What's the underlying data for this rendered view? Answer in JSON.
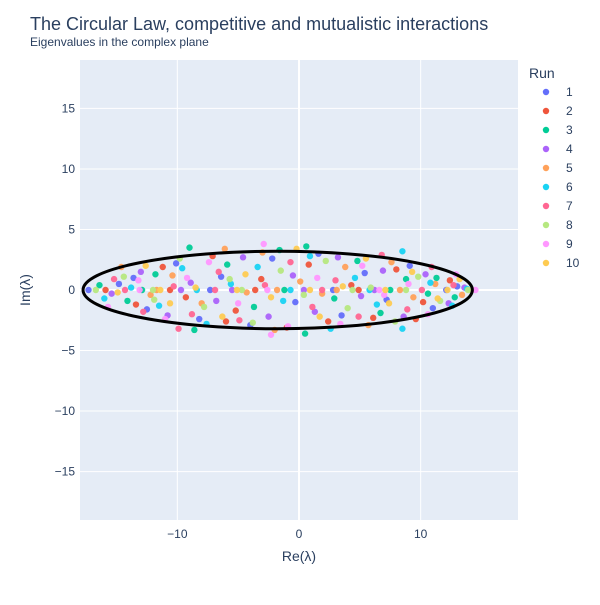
{
  "chart_data": {
    "type": "scatter",
    "title": "The Circular Law, competitive and mutualistic interactions",
    "subtitle": "Eigenvalues in the complex plane",
    "xlabel": "Re(λ)",
    "ylabel": "Im(λ)",
    "xlim": [
      -18,
      18
    ],
    "ylim": [
      -19,
      19
    ],
    "x_ticks": [
      -10,
      0,
      10
    ],
    "x_tick_labels": [
      "−10",
      "0",
      "10"
    ],
    "y_ticks": [
      -15,
      -10,
      -5,
      0,
      5,
      10,
      15
    ],
    "y_tick_labels": [
      "−15",
      "−10",
      "−5",
      "0",
      "5",
      "10",
      "15"
    ],
    "grid": true,
    "legend": {
      "title": "Run",
      "placement": "right",
      "entries": [
        "1",
        "2",
        "3",
        "4",
        "5",
        "6",
        "7",
        "8",
        "9",
        "10"
      ]
    },
    "ellipse": {
      "center": [
        -1.75,
        0
      ],
      "semi_axis_re": 16,
      "semi_axis_im": 3.2
    },
    "series": [
      {
        "name": "1",
        "color": "#636efa",
        "points": [
          [
            -17.3,
            0
          ],
          [
            -14.8,
            0.5
          ],
          [
            -12.5,
            -1.6
          ],
          [
            -10.1,
            2.2
          ],
          [
            -8.2,
            -2.4
          ],
          [
            -6.4,
            1.1
          ],
          [
            -4.0,
            -2.9
          ],
          [
            -2.2,
            2.6
          ],
          [
            -0.3,
            -1.0
          ],
          [
            1.6,
            3.0
          ],
          [
            3.5,
            -2.1
          ],
          [
            5.4,
            1.4
          ],
          [
            7.2,
            -0.8
          ],
          [
            9.1,
            2.0
          ],
          [
            11.0,
            -1.5
          ],
          [
            13.0,
            0.3
          ],
          [
            -13.6,
            1.0
          ],
          [
            -7.3,
            0
          ],
          [
            2.8,
            0
          ],
          [
            12.1,
            0
          ]
        ]
      },
      {
        "name": "2",
        "color": "#ef553b",
        "points": [
          [
            -15.9,
            0
          ],
          [
            -13.4,
            -1.2
          ],
          [
            -11.2,
            1.9
          ],
          [
            -9.3,
            -0.6
          ],
          [
            -7.1,
            2.8
          ],
          [
            -5.2,
            -1.7
          ],
          [
            -3.1,
            0.9
          ],
          [
            -1.0,
            -3.1
          ],
          [
            0.8,
            2.1
          ],
          [
            2.4,
            -2.6
          ],
          [
            4.3,
            0.4
          ],
          [
            6.1,
            -2.3
          ],
          [
            8.0,
            1.7
          ],
          [
            10.2,
            -1.0
          ],
          [
            12.4,
            0.8
          ],
          [
            -10.6,
            0
          ],
          [
            -3.6,
            0
          ],
          [
            4.9,
            0
          ],
          [
            9.6,
            -2.4
          ],
          [
            -6.0,
            -2.6
          ]
        ]
      },
      {
        "name": "3",
        "color": "#00cc96",
        "points": [
          [
            -16.4,
            0.4
          ],
          [
            -14.1,
            -0.9
          ],
          [
            -11.8,
            1.3
          ],
          [
            -9.0,
            3.5
          ],
          [
            -8.6,
            -3.3
          ],
          [
            -5.9,
            2.1
          ],
          [
            -3.7,
            -1.4
          ],
          [
            -1.6,
            3.3
          ],
          [
            0.6,
            3.6
          ],
          [
            0.5,
            -3.6
          ],
          [
            2.9,
            -0.7
          ],
          [
            4.8,
            2.4
          ],
          [
            6.7,
            -1.9
          ],
          [
            8.8,
            0.9
          ],
          [
            10.6,
            -0.3
          ],
          [
            12.8,
            -0.6
          ],
          [
            -12.9,
            0
          ],
          [
            -1.2,
            0
          ],
          [
            7.5,
            0
          ],
          [
            11.3,
            1.0
          ]
        ]
      },
      {
        "name": "4",
        "color": "#ab63fa",
        "points": [
          [
            -15.4,
            -0.3
          ],
          [
            -13.0,
            1.5
          ],
          [
            -10.8,
            -2.1
          ],
          [
            -8.9,
            0.6
          ],
          [
            -6.8,
            -0.9
          ],
          [
            -4.6,
            2.7
          ],
          [
            -2.5,
            -2.2
          ],
          [
            -0.5,
            1.2
          ],
          [
            1.3,
            -1.8
          ],
          [
            3.2,
            2.7
          ],
          [
            5.1,
            -0.5
          ],
          [
            6.9,
            1.6
          ],
          [
            8.6,
            -2.2
          ],
          [
            10.4,
            1.3
          ],
          [
            12.3,
            -1.1
          ],
          [
            -9.7,
            0
          ],
          [
            -5.5,
            0
          ],
          [
            0.4,
            0
          ],
          [
            6.2,
            0
          ],
          [
            13.6,
            0.2
          ]
        ]
      },
      {
        "name": "5",
        "color": "#ffa15a",
        "points": [
          [
            -14.6,
            1.9
          ],
          [
            -12.2,
            -0.4
          ],
          [
            -10.4,
            1.2
          ],
          [
            -8.0,
            -1.1
          ],
          [
            -6.1,
            3.4
          ],
          [
            -4.3,
            -0.2
          ],
          [
            -2.0,
            -3.3
          ],
          [
            0.1,
            0.7
          ],
          [
            1.9,
            -0.3
          ],
          [
            3.8,
            1.9
          ],
          [
            5.7,
            -2.9
          ],
          [
            7.6,
            2.3
          ],
          [
            9.4,
            -0.6
          ],
          [
            11.2,
            0.5
          ],
          [
            13.4,
            -0.4
          ],
          [
            -11.7,
            0
          ],
          [
            -1.8,
            0
          ],
          [
            3.1,
            0
          ],
          [
            8.3,
            0
          ],
          [
            -3.0,
            3.1
          ]
        ]
      },
      {
        "name": "6",
        "color": "#19d3f3",
        "points": [
          [
            -16.0,
            -0.7
          ],
          [
            -13.8,
            0.2
          ],
          [
            -11.5,
            -1.3
          ],
          [
            -9.6,
            1.8
          ],
          [
            -7.6,
            -2.8
          ],
          [
            -5.6,
            0.5
          ],
          [
            -3.4,
            1.9
          ],
          [
            -1.3,
            -0.9
          ],
          [
            0.9,
            2.8
          ],
          [
            2.6,
            -3.2
          ],
          [
            4.6,
            1.0
          ],
          [
            6.4,
            -1.2
          ],
          [
            8.5,
            3.2
          ],
          [
            8.5,
            -3.2
          ],
          [
            10.8,
            0.6
          ],
          [
            12.6,
            -1.3
          ],
          [
            -8.4,
            0
          ],
          [
            -0.7,
            0
          ],
          [
            5.8,
            0
          ],
          [
            13.8,
            0.1
          ]
        ]
      },
      {
        "name": "7",
        "color": "#ff6692",
        "points": [
          [
            -15.2,
            0.9
          ],
          [
            -12.8,
            -1.8
          ],
          [
            -10.3,
            0.3
          ],
          [
            -8.8,
            -2.0
          ],
          [
            -6.6,
            1.5
          ],
          [
            -4.9,
            -2.5
          ],
          [
            -2.8,
            0.4
          ],
          [
            -0.7,
            2.3
          ],
          [
            1.1,
            -1.4
          ],
          [
            3.0,
            0.8
          ],
          [
            4.9,
            -2.2
          ],
          [
            6.8,
            2.9
          ],
          [
            8.9,
            -1.6
          ],
          [
            10.9,
            1.9
          ],
          [
            12.7,
            0.4
          ],
          [
            -14.3,
            0
          ],
          [
            -6.9,
            0
          ],
          [
            1.9,
            0
          ],
          [
            10.1,
            0
          ],
          [
            -9.9,
            -3.2
          ]
        ]
      },
      {
        "name": "8",
        "color": "#b6e880",
        "points": [
          [
            -16.7,
            0
          ],
          [
            -14.4,
            1.1
          ],
          [
            -11.9,
            -0.8
          ],
          [
            -9.8,
            2.6
          ],
          [
            -7.8,
            -1.4
          ],
          [
            -5.7,
            0.9
          ],
          [
            -3.8,
            -2.7
          ],
          [
            -1.5,
            1.6
          ],
          [
            0.4,
            -0.4
          ],
          [
            2.2,
            2.4
          ],
          [
            4.0,
            -1.5
          ],
          [
            5.9,
            0.2
          ],
          [
            7.9,
            -2.6
          ],
          [
            9.8,
            1.1
          ],
          [
            11.6,
            -0.9
          ],
          [
            13.9,
            0
          ],
          [
            -12.0,
            0
          ],
          [
            -4.7,
            0
          ],
          [
            4.4,
            0
          ],
          [
            8.8,
            0
          ]
        ]
      },
      {
        "name": "9",
        "color": "#ff97ff",
        "points": [
          [
            -15.7,
            -1.4
          ],
          [
            -13.2,
            0.8
          ],
          [
            -11.0,
            -2.4
          ],
          [
            -9.2,
            1.0
          ],
          [
            -7.4,
            2.3
          ],
          [
            -5.0,
            -1.1
          ],
          [
            -2.9,
            3.8
          ],
          [
            -0.9,
            -3.0
          ],
          [
            1.5,
            1.0
          ],
          [
            3.4,
            -2.8
          ],
          [
            5.2,
            2.0
          ],
          [
            7.0,
            -0.4
          ],
          [
            9.0,
            0.5
          ],
          [
            10.6,
            -2.0
          ],
          [
            12.9,
            1.3
          ],
          [
            14.5,
            0
          ],
          [
            -13.1,
            0
          ],
          [
            -2.6,
            0
          ],
          [
            6.6,
            0
          ],
          [
            -2.3,
            -3.7
          ]
        ]
      },
      {
        "name": "10",
        "color": "#fecb52",
        "points": [
          [
            -14.9,
            -0.2
          ],
          [
            -12.6,
            2.0
          ],
          [
            -10.6,
            -1.1
          ],
          [
            -8.5,
            0.2
          ],
          [
            -6.3,
            -2.2
          ],
          [
            -4.4,
            1.3
          ],
          [
            -2.3,
            -0.6
          ],
          [
            -0.2,
            3.4
          ],
          [
            1.7,
            -2.2
          ],
          [
            3.6,
            0.3
          ],
          [
            5.5,
            2.6
          ],
          [
            7.4,
            -1.1
          ],
          [
            9.3,
            1.5
          ],
          [
            11.4,
            -0.7
          ],
          [
            13.2,
            0.9
          ],
          [
            -11.4,
            0
          ],
          [
            -5.1,
            0
          ],
          [
            0.9,
            0
          ],
          [
            7.1,
            0
          ],
          [
            12.2,
            0
          ]
        ]
      }
    ]
  }
}
